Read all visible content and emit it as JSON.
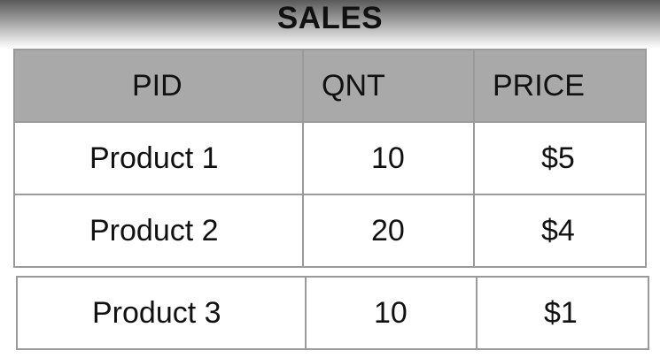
{
  "title": "SALES",
  "table": {
    "headers": [
      "PID",
      "QNT",
      "PRICE"
    ],
    "rows": [
      [
        "Product 1",
        "10",
        "$5"
      ],
      [
        "Product 2",
        "20",
        "$4"
      ]
    ]
  },
  "extra_row": [
    "Product 3",
    "10",
    "$1"
  ]
}
